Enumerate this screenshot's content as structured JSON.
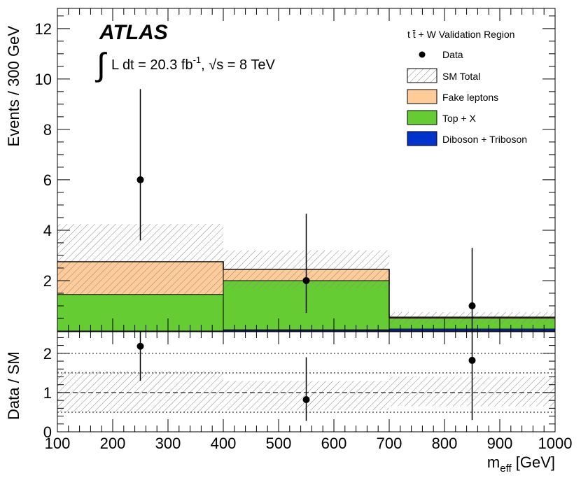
{
  "chart_data": [
    {
      "type": "bar",
      "panel": "main",
      "stacked": true,
      "bin_edges": [
        100,
        400,
        700,
        1000
      ],
      "ylabel": "Events / 300 GeV",
      "ylim": [
        0,
        12.8
      ],
      "yticks": [
        2,
        4,
        6,
        8,
        10,
        12
      ],
      "experiment": "ATLAS",
      "lumi_text": "L dt = 20.3 fb",
      "lumi_sup": "-1",
      "energy_text": ", √s = 8 TeV",
      "legend": {
        "title": "t t̄ + W Validation Region",
        "placement": "top-right",
        "entries": [
          "Data",
          "SM Total",
          "Fake leptons",
          "Top + X",
          "Diboson + Triboson"
        ]
      },
      "series": [
        {
          "name": "Diboson + Triboson",
          "values": [
            0.0,
            0.05,
            0.08
          ],
          "color": "#0033cc"
        },
        {
          "name": "Top + X",
          "values": [
            1.45,
            1.95,
            0.42
          ],
          "color": "#66cc33"
        },
        {
          "name": "Fake leptons",
          "values": [
            1.3,
            0.45,
            0.05
          ],
          "color": "#ffcc99"
        }
      ],
      "sm_total": {
        "name": "SM Total",
        "values": [
          2.75,
          2.45,
          0.55
        ],
        "err_low": [
          1.4,
          1.7,
          0.3
        ],
        "err_high": [
          4.25,
          3.2,
          0.75
        ]
      },
      "data": {
        "name": "Data",
        "x": [
          250,
          550,
          850
        ],
        "y": [
          6,
          2,
          1
        ],
        "err_low": [
          3.6,
          0.72,
          0.0
        ],
        "err_high": [
          9.6,
          4.65,
          3.3
        ]
      }
    },
    {
      "type": "scatter",
      "panel": "ratio",
      "xlabel": "m",
      "xlabel_sub": "eff",
      "xlabel_unit": " [GeV]",
      "xlim": [
        100,
        1000
      ],
      "xticks": [
        100,
        200,
        300,
        400,
        500,
        600,
        700,
        800,
        900,
        1000
      ],
      "ylabel": "Data / SM",
      "ylim": [
        0,
        2.55
      ],
      "yticks": [
        0,
        1,
        2
      ],
      "reference_lines": [
        0.5,
        1,
        1.5,
        2
      ],
      "points": {
        "x": [
          250,
          550,
          850
        ],
        "y": [
          2.18,
          0.82,
          1.82
        ],
        "err_low": [
          1.3,
          0.28,
          0.3
        ],
        "err_high": [
          2.55,
          1.9,
          2.55
        ]
      },
      "sm_band": {
        "low": [
          0.5,
          0.55,
          0.65
        ],
        "high": [
          1.55,
          1.3,
          1.4
        ]
      }
    }
  ]
}
